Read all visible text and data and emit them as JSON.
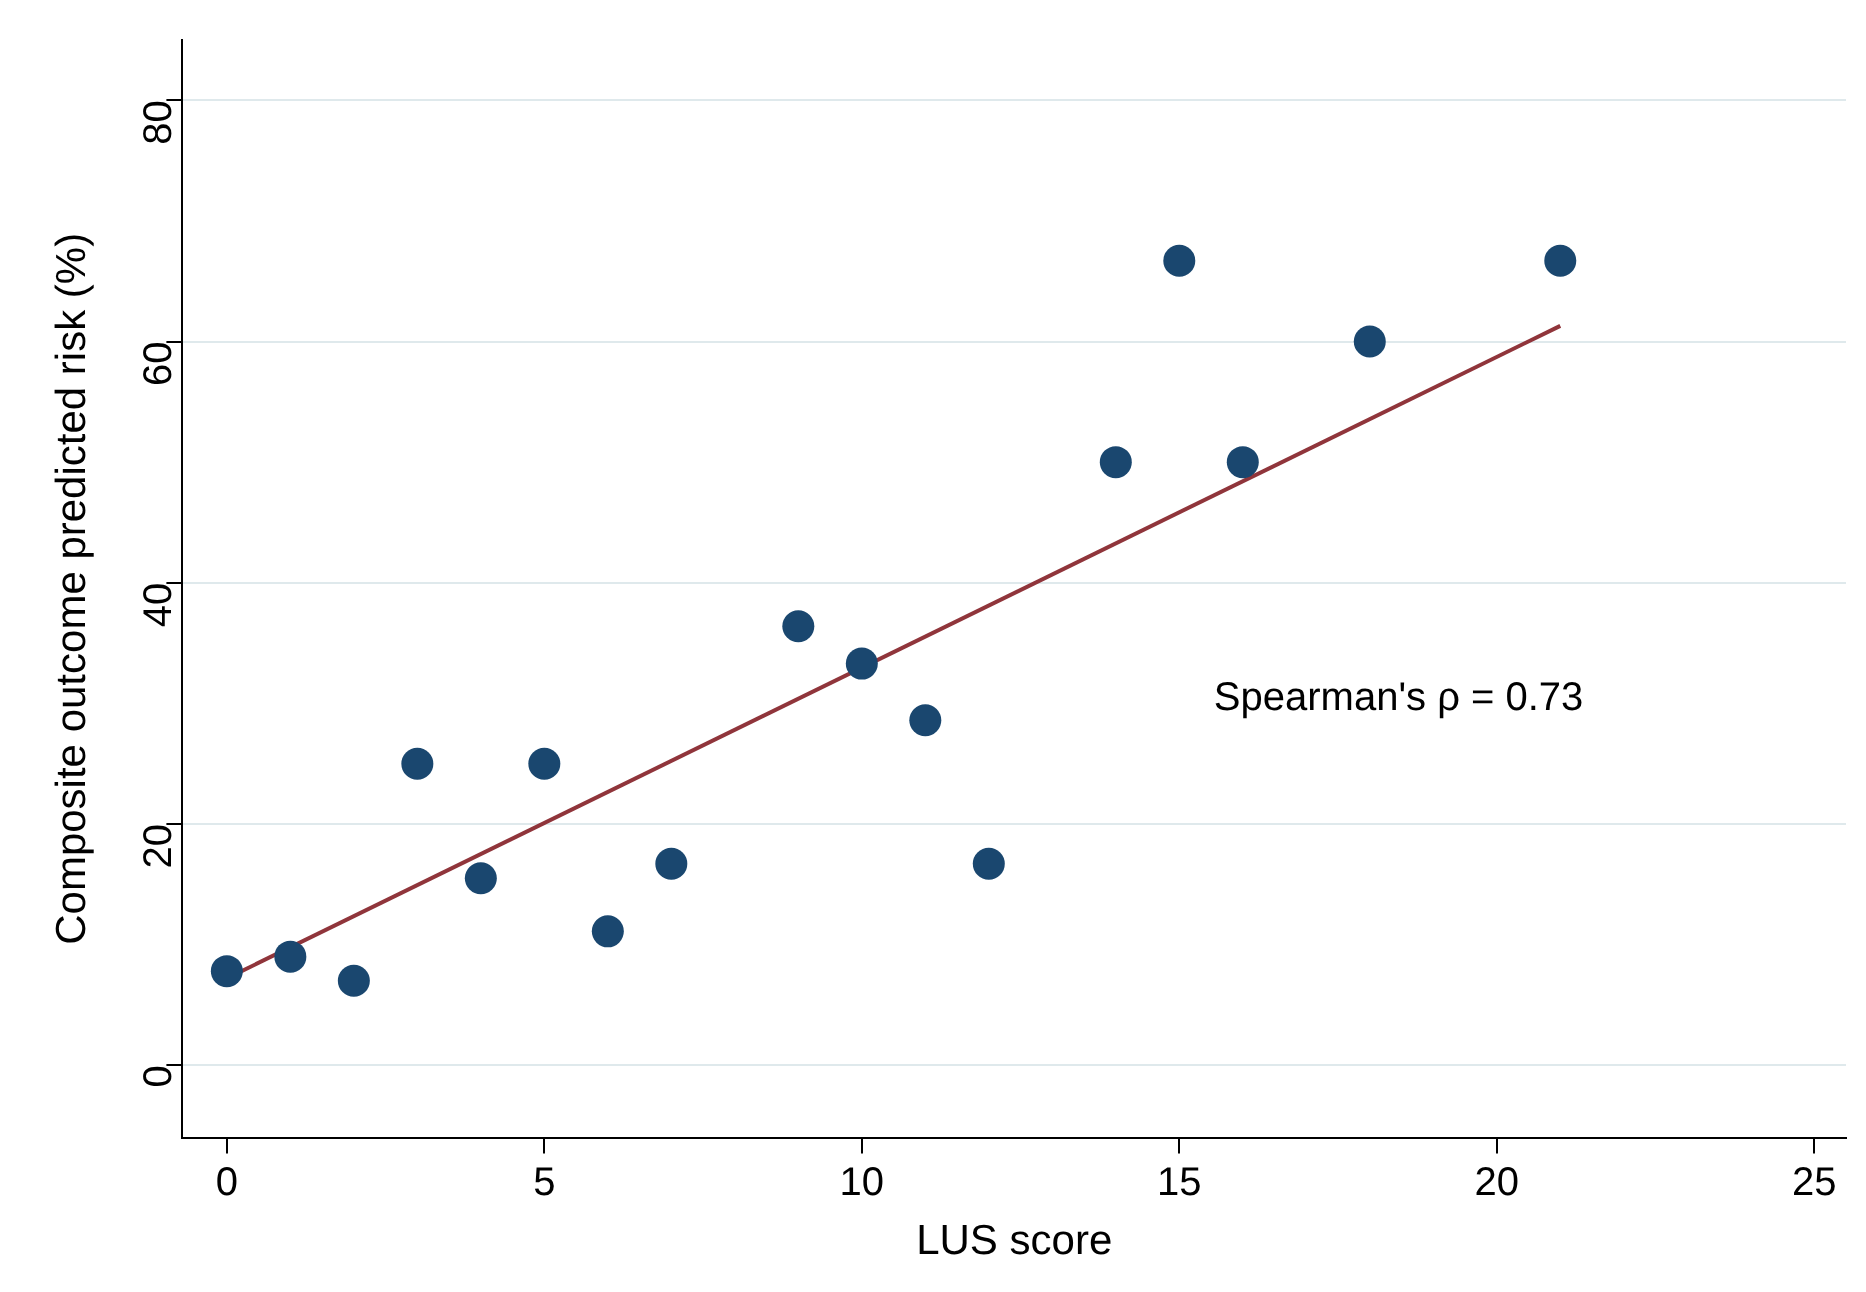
{
  "chart_data": {
    "type": "scatter",
    "xlabel": "LUS score",
    "ylabel": "Composite outcome predicted risk (%)",
    "x": [
      0,
      1,
      2,
      3,
      4,
      5,
      6,
      7,
      9,
      10,
      11,
      12,
      14,
      15,
      16,
      18,
      21
    ],
    "series": [
      {
        "color": "#1a476f",
        "marker": "circle",
        "values": [
          7.8,
          9,
          7,
          25,
          15.5,
          25,
          11.1,
          16.7,
          36.4,
          33.3,
          28.6,
          16.7,
          50,
          66.7,
          50,
          60,
          66.7
        ]
      },
      {
        "type": "line",
        "color": "#90353b",
        "marker": "none",
        "line_style": "solid",
        "x": [
          0,
          21
        ],
        "values": [
          7.2,
          61.3
        ]
      }
    ],
    "xlim": [
      -0.7,
      25.5
    ],
    "xticks": [
      0,
      5,
      10,
      15,
      20,
      25
    ],
    "ylim": [
      -6,
      85
    ],
    "yticks": [
      0,
      20,
      40,
      60,
      80
    ],
    "grid": "y",
    "legend": false,
    "annotations": [
      "Spearman's ρ = 0.73"
    ]
  }
}
